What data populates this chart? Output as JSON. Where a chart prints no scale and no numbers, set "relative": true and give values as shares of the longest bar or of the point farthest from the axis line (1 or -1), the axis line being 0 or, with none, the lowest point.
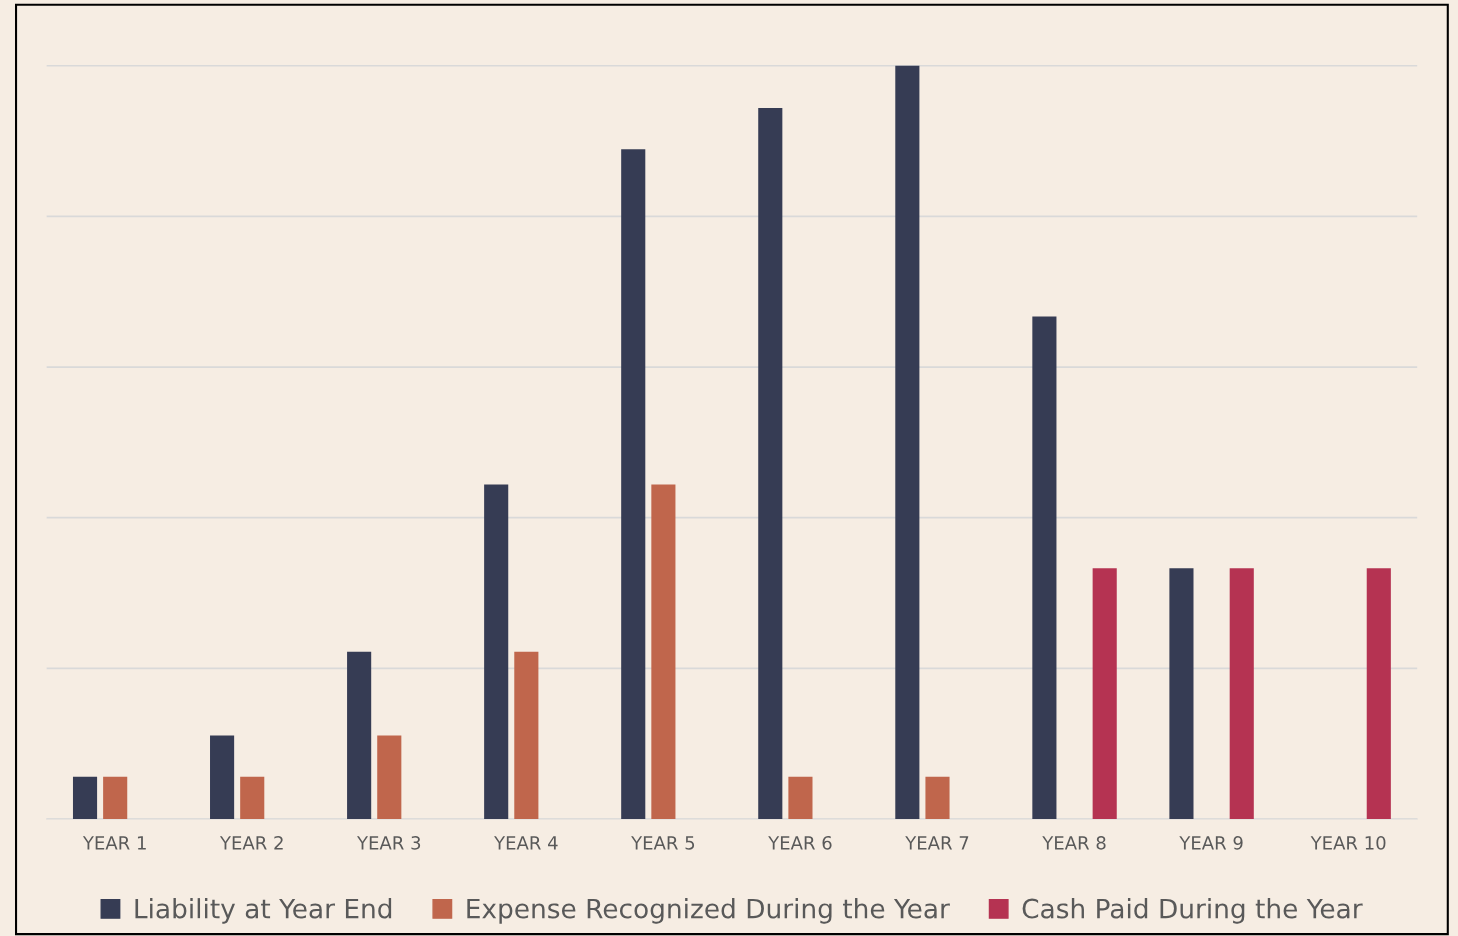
{
  "chart_data": {
    "type": "bar",
    "relative": true,
    "grid": "y",
    "legend": "bottom",
    "categories": [
      "YEAR 1",
      "YEAR 2",
      "YEAR 3",
      "YEAR 4",
      "YEAR 5",
      "YEAR 6",
      "YEAR 7",
      "YEAR 8",
      "YEAR 9",
      "YEAR 10"
    ],
    "series": [
      {
        "name": "Liability at Year End",
        "color": "#363c54",
        "values": [
          0.056,
          0.111,
          0.222,
          0.444,
          0.889,
          0.944,
          1,
          0.667,
          0.333,
          0
        ]
      },
      {
        "name": "Expense Recognized During the Year",
        "color": "#c0664c",
        "values": [
          0.056,
          0.056,
          0.111,
          0.222,
          0.444,
          0.056,
          0.056,
          0,
          0,
          0
        ]
      },
      {
        "name": "Cash Paid During the Year",
        "color": "#b53352",
        "values": [
          0,
          0,
          0,
          0,
          0,
          0,
          0,
          0.333,
          0.333,
          0.333
        ]
      }
    ]
  }
}
